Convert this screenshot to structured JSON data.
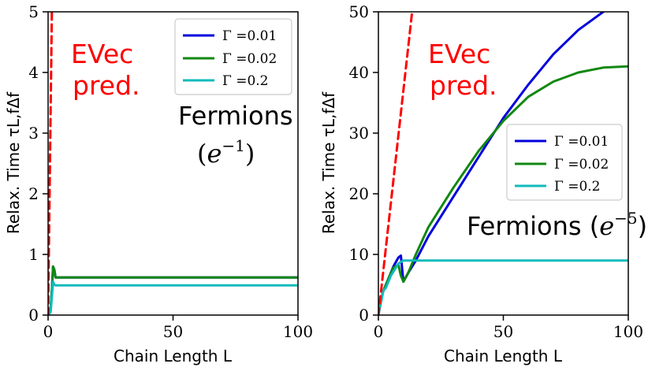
{
  "chart_data": [
    {
      "type": "line",
      "xlabel": "Chain Length L",
      "ylabel": "Relax. Time τL,fΔf",
      "xlim": [
        0,
        100
      ],
      "ylim": [
        0,
        5
      ],
      "xticks": [
        "0",
        "50",
        "100"
      ],
      "yticks": [
        "0",
        "1",
        "2",
        "3",
        "4",
        "5"
      ],
      "legend_position": "top-right",
      "series": [
        {
          "name": "Γ =0.01",
          "color": "#0000dd",
          "x": [
            0,
            1,
            1.5,
            2,
            2.5,
            3,
            4,
            10,
            100
          ],
          "y": [
            0,
            0.1,
            0.4,
            0.8,
            0.75,
            0.62,
            0.62,
            0.62,
            0.62
          ]
        },
        {
          "name": "Γ =0.02",
          "color": "#118811",
          "x": [
            0,
            1,
            1.5,
            2,
            2.5,
            3,
            4,
            10,
            100
          ],
          "y": [
            0,
            0.1,
            0.4,
            0.8,
            0.75,
            0.62,
            0.62,
            0.62,
            0.62
          ]
        },
        {
          "name": "Γ =0.2",
          "color": "#11bbbb",
          "x": [
            0,
            1,
            1.5,
            2,
            2.5,
            3,
            10,
            100
          ],
          "y": [
            0,
            0.05,
            0.3,
            0.55,
            0.5,
            0.49,
            0.49,
            0.49
          ]
        },
        {
          "name": "",
          "color": "#ff0000",
          "dashed": true,
          "x": [
            0,
            1.5
          ],
          "y": [
            0,
            5
          ]
        }
      ],
      "annotations": {
        "evec": "EVec",
        "pred": "pred.",
        "title": "Fermions",
        "paren_open": "(",
        "paren_close": ")",
        "exp_base": "e",
        "exp_power": "−1"
      }
    },
    {
      "type": "line",
      "xlabel": "Chain Length L",
      "ylabel": "Relax. Time τL,fΔf",
      "xlim": [
        0,
        100
      ],
      "ylim": [
        0,
        50
      ],
      "xticks": [
        "0",
        "50",
        "100"
      ],
      "yticks": [
        "0",
        "10",
        "20",
        "30",
        "40",
        "50"
      ],
      "legend_position": "center-right",
      "series": [
        {
          "name": "Γ =0.01",
          "color": "#0000dd",
          "x": [
            0,
            1,
            2,
            4,
            6,
            8,
            9,
            10,
            12,
            15,
            20,
            30,
            40,
            50,
            60,
            70,
            80,
            90
          ],
          "y": [
            0,
            2.5,
            4,
            6,
            8,
            9.5,
            9.8,
            5.5,
            7,
            9,
            13,
            19.5,
            26,
            32.5,
            38,
            43,
            47,
            50
          ]
        },
        {
          "name": "Γ =0.02",
          "color": "#118811",
          "x": [
            0,
            1,
            2,
            4,
            6,
            8,
            9,
            10,
            12,
            15,
            20,
            30,
            40,
            50,
            60,
            70,
            80,
            90,
            100
          ],
          "y": [
            0,
            2.5,
            4,
            6,
            7.8,
            8.3,
            6.5,
            5.5,
            7,
            10,
            14.5,
            21,
            27,
            32,
            36,
            38.5,
            40,
            40.8,
            41
          ]
        },
        {
          "name": "Γ =0.2",
          "color": "#11bbbb",
          "x": [
            0,
            1,
            2,
            3,
            5,
            8,
            10,
            15,
            100
          ],
          "y": [
            0,
            2,
            4,
            4.5,
            6.5,
            8.5,
            9,
            9,
            9
          ]
        },
        {
          "name": "",
          "color": "#ff0000",
          "dashed": true,
          "x": [
            0,
            13.5
          ],
          "y": [
            0,
            50
          ]
        }
      ],
      "annotations": {
        "evec": "EVec",
        "pred": "pred.",
        "title": "Fermions (",
        "exp_base": "e",
        "exp_power": "−5",
        "paren_close": ")"
      }
    }
  ]
}
